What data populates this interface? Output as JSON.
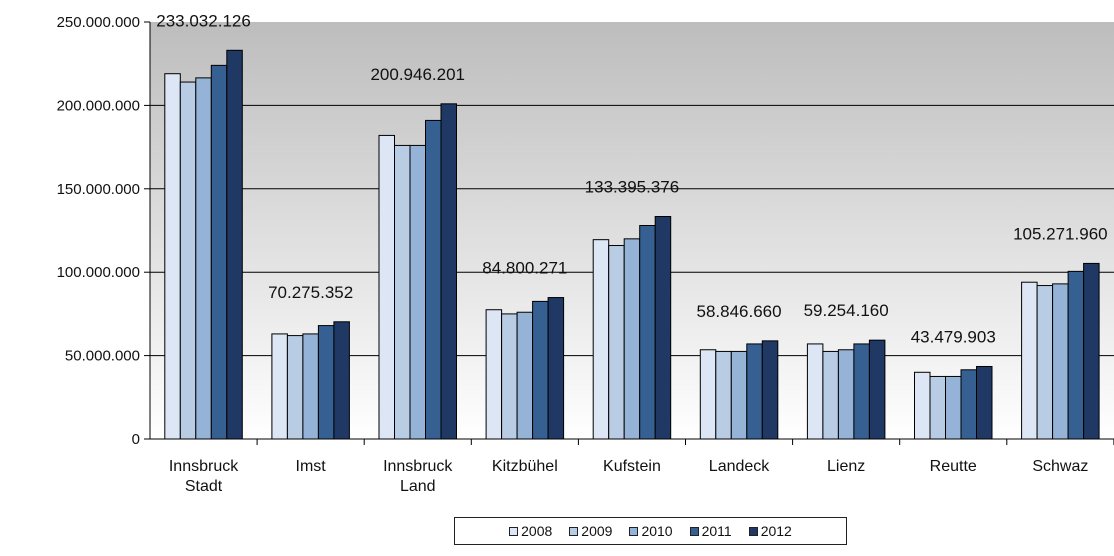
{
  "chart_data": {
    "type": "bar",
    "categories": [
      [
        "Innsbruck",
        "Stadt"
      ],
      [
        "Imst"
      ],
      [
        "Innsbruck",
        "Land"
      ],
      [
        "Kitzbühel"
      ],
      [
        "Kufstein"
      ],
      [
        "Landeck"
      ],
      [
        "Lienz"
      ],
      [
        "Reutte"
      ],
      [
        "Schwaz"
      ]
    ],
    "series": [
      {
        "name": "2008",
        "color": "#dce6f4",
        "values": [
          219000000,
          63000000,
          182000000,
          77500000,
          119500000,
          53500000,
          57000000,
          40000000,
          94000000
        ]
      },
      {
        "name": "2009",
        "color": "#b8cce4",
        "values": [
          214000000,
          62000000,
          176000000,
          75000000,
          116000000,
          52500000,
          52500000,
          37500000,
          92000000
        ]
      },
      {
        "name": "2010",
        "color": "#95b3d7",
        "values": [
          216500000,
          63000000,
          176000000,
          76000000,
          120000000,
          52500000,
          53500000,
          37500000,
          93000000
        ]
      },
      {
        "name": "2011",
        "color": "#366092",
        "values": [
          224000000,
          68000000,
          191000000,
          82500000,
          128000000,
          57000000,
          57000000,
          41500000,
          100500000
        ]
      },
      {
        "name": "2012",
        "color": "#1f3864",
        "values": [
          233032126,
          70275352,
          200946201,
          84800271,
          133395376,
          58846660,
          59254160,
          43479903,
          105271960
        ]
      }
    ],
    "data_labels": [
      "233.032.126",
      "70.275.352",
      "200.946.201",
      "84.800.271",
      "133.395.376",
      "58.846.660",
      "59.254.160",
      "43.479.903",
      "105.271.960"
    ],
    "yticks": [
      "0",
      "50.000.000",
      "100.000.000",
      "150.000.000",
      "200.000.000",
      "250.000.000"
    ],
    "ylim": [
      0,
      250000000
    ],
    "grid": true,
    "legend_position": "bottom",
    "title": "",
    "xlabel": "",
    "ylabel": ""
  }
}
